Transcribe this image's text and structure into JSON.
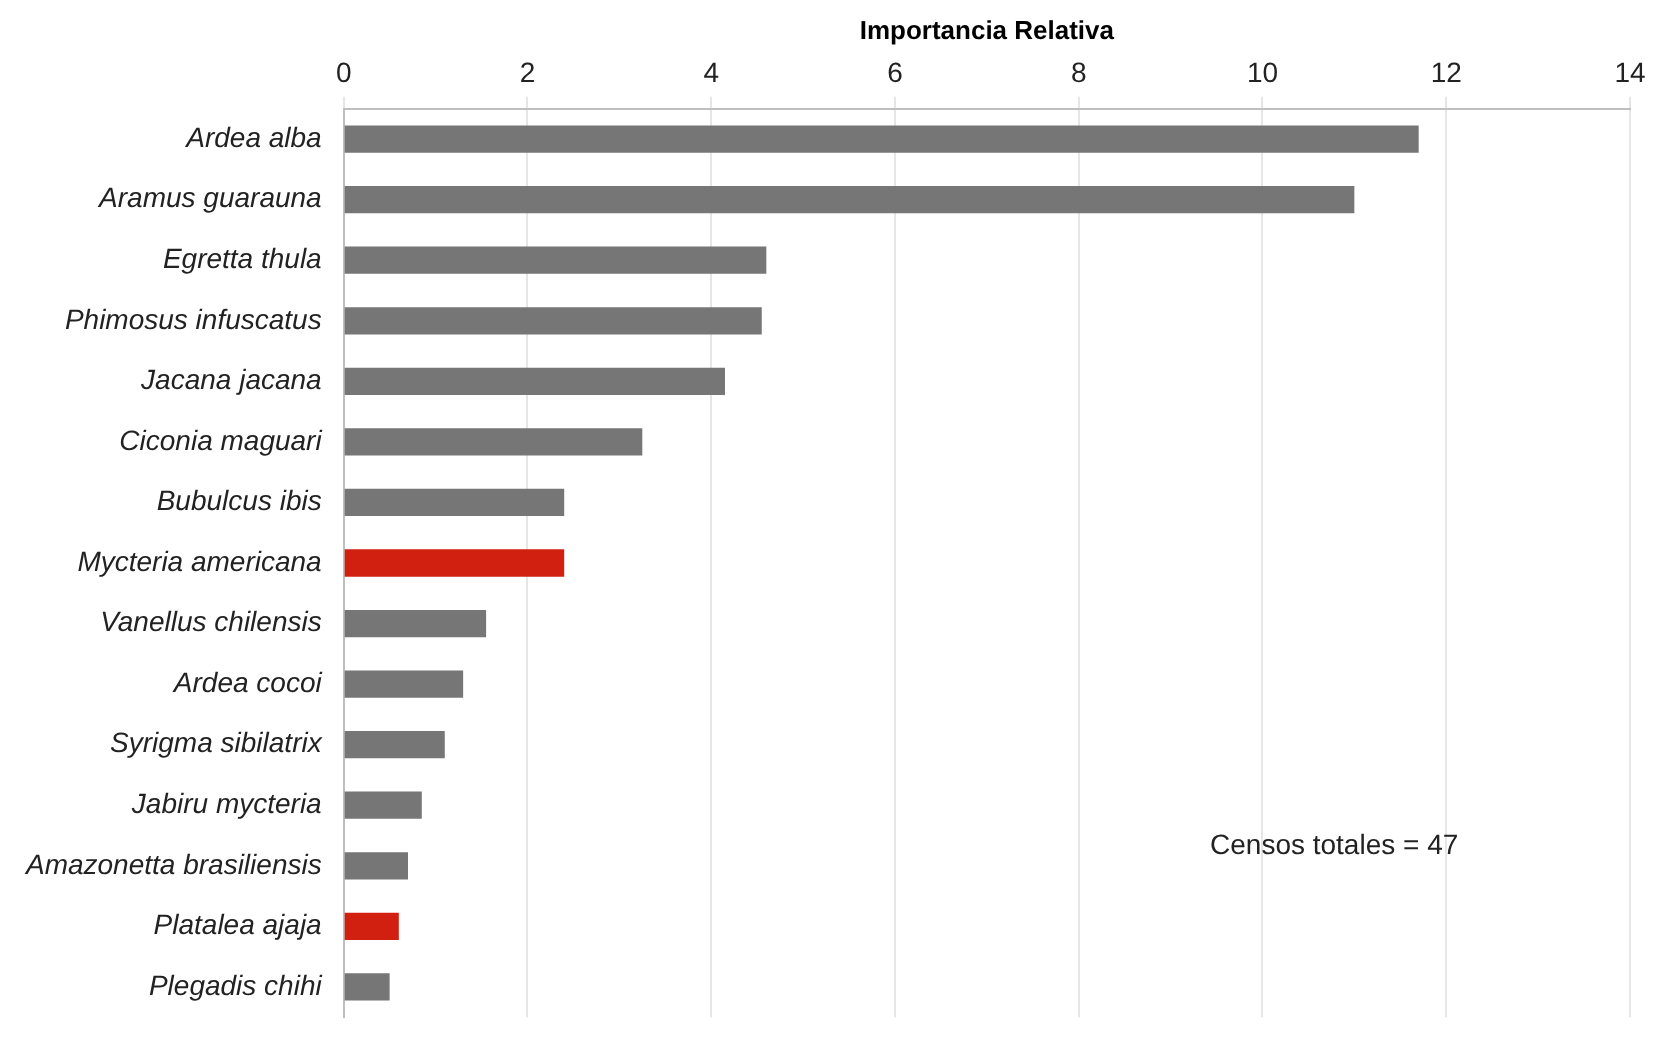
{
  "chart_data": {
    "type": "bar",
    "orientation": "horizontal",
    "xlabel": "Importancia Relativa",
    "categories": [
      "Ardea alba",
      "Aramus guarauna",
      "Egretta thula",
      "Phimosus infuscatus",
      "Jacana jacana",
      "Ciconia maguari",
      "Bubulcus ibis",
      "Mycteria americana",
      "Vanellus chilensis",
      "Ardea cocoi",
      "Syrigma sibilatrix",
      "Jabiru mycteria",
      "Amazonetta brasiliensis",
      "Platalea ajaja",
      "Plegadis chihi"
    ],
    "values": [
      11.7,
      11.0,
      4.6,
      4.55,
      4.15,
      3.25,
      2.4,
      2.4,
      1.55,
      1.3,
      1.1,
      0.85,
      0.7,
      0.6,
      0.5
    ],
    "colors": [
      "#767676",
      "#767676",
      "#767676",
      "#767676",
      "#767676",
      "#767676",
      "#767676",
      "#d22010",
      "#767676",
      "#767676",
      "#767676",
      "#767676",
      "#767676",
      "#d22010",
      "#767676"
    ],
    "xlim": [
      0,
      14
    ],
    "xticks": [
      0,
      2,
      4,
      6,
      8,
      10,
      12,
      14
    ],
    "grid": "x",
    "legend": false,
    "annotations": [
      "Censos totales = 47"
    ]
  }
}
